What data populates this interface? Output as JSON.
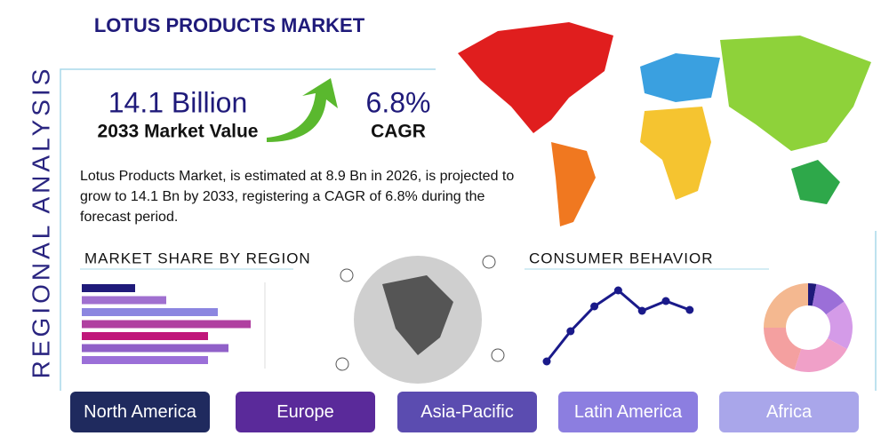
{
  "header": {
    "title": "LOTUS PRODUCTS MARKET",
    "side_label": "REGIONAL ANALYSIS"
  },
  "stats": [
    {
      "value": "14.1 Billion",
      "label": "2033 Market Value"
    },
    {
      "value": "6.8%",
      "label": "CAGR"
    }
  ],
  "description": "Lotus Products Market, is estimated at 8.9 Bn in 2026, is projected to grow to 14.1 Bn by 2033, registering a CAGR of 6.8% during the forecast period.",
  "chart_data": [
    {
      "type": "bar",
      "title": "MARKET SHARE BY REGION",
      "orientation": "horizontal",
      "xlim": [
        0,
        200
      ],
      "values": [
        60,
        95,
        153,
        190,
        142,
        165,
        142
      ],
      "colors": [
        "#1f1a7a",
        "#a070d0",
        "#8c86e0",
        "#b040a0",
        "#c0177a",
        "#9060c8",
        "#9b6fd8"
      ]
    },
    {
      "type": "line",
      "title": "CONSUMER BEHAVIOR",
      "ylim": [
        0,
        100
      ],
      "color": "#1a1a8a",
      "values": [
        11,
        45,
        73,
        91,
        68,
        79,
        69
      ]
    },
    {
      "type": "pie",
      "donut": true,
      "values": [
        3,
        12,
        18,
        22,
        20,
        25
      ],
      "colors": [
        "#1f1a7a",
        "#9b6fd8",
        "#d49be8",
        "#f0a0c8",
        "#f4a0a0",
        "#f4b890"
      ]
    }
  ],
  "regions": [
    "North America",
    "Europe",
    "Asia-Pacific",
    "Latin America",
    "Africa"
  ]
}
